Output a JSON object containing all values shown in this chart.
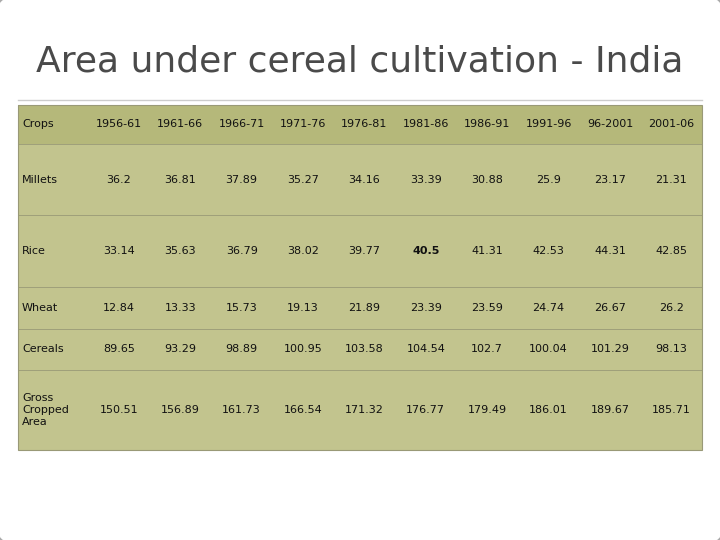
{
  "title": "Area under cereal cultivation - India",
  "title_fontsize": 26,
  "title_color": "#4a4a4a",
  "columns": [
    "Crops",
    "1956-61",
    "1961-66",
    "1966-71",
    "1971-76",
    "1976-81",
    "1981-86",
    "1986-91",
    "1991-96",
    "96-2001",
    "2001-06"
  ],
  "rows": [
    [
      "Millets",
      "36.2",
      "36.81",
      "37.89",
      "35.27",
      "34.16",
      "33.39",
      "30.88",
      "25.9",
      "23.17",
      "21.31"
    ],
    [
      "Rice",
      "33.14",
      "35.63",
      "36.79",
      "38.02",
      "39.77",
      "40.5",
      "41.31",
      "42.53",
      "44.31",
      "42.85"
    ],
    [
      "Wheat",
      "12.84",
      "13.33",
      "15.73",
      "19.13",
      "21.89",
      "23.39",
      "23.59",
      "24.74",
      "26.67",
      "26.2"
    ],
    [
      "Cereals",
      "89.65",
      "93.29",
      "98.89",
      "100.95",
      "103.58",
      "104.54",
      "102.7",
      "100.04",
      "101.29",
      "98.13"
    ],
    [
      "Gross\nCropped\nArea",
      "150.51",
      "156.89",
      "161.73",
      "166.54",
      "171.32",
      "176.77",
      "179.49",
      "186.01",
      "189.67",
      "185.71"
    ]
  ],
  "header_bg_color": "#b5b87a",
  "header_text_color": "#111111",
  "table_text_color": "#111111",
  "table_bg_color": "#c2c48e",
  "outer_bg": "#ffffff",
  "border_color": "#aaaaaa",
  "line_color": "#999977",
  "fig_width": 7.2,
  "fig_height": 5.4,
  "dpi": 100
}
